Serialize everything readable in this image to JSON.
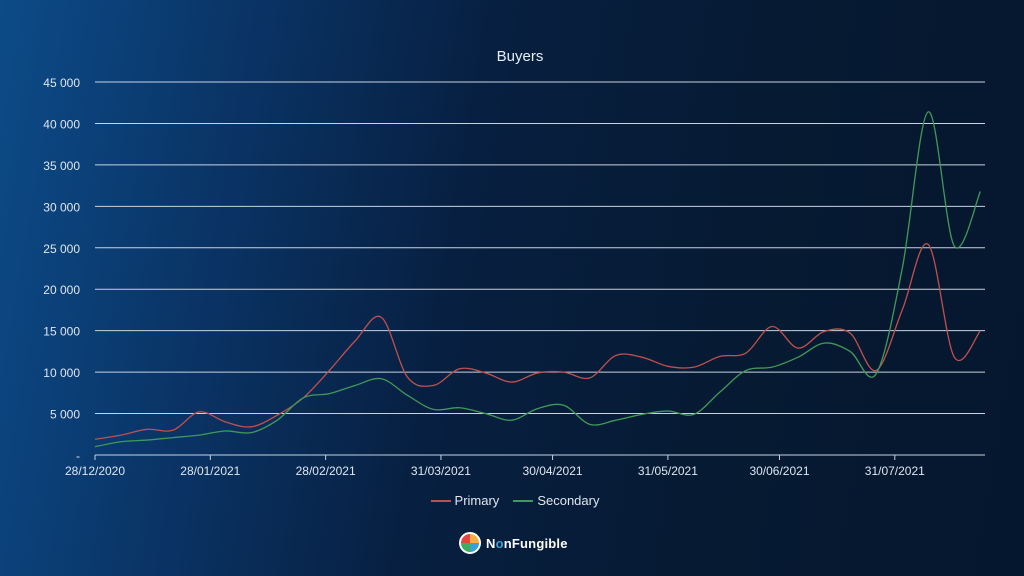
{
  "chart_data": {
    "type": "line",
    "title": "Buyers",
    "xlabel": "",
    "ylabel": "",
    "ylim": [
      0,
      45000
    ],
    "grid": true,
    "legend_position": "bottom",
    "y_ticks": [
      0,
      5000,
      10000,
      15000,
      20000,
      25000,
      30000,
      35000,
      40000,
      45000
    ],
    "y_tick_labels": [
      "-",
      "5 000",
      "10 000",
      "15 000",
      "20 000",
      "25 000",
      "30 000",
      "35 000",
      "40 000",
      "45 000"
    ],
    "x_ticks": [
      "2020-12-28",
      "2021-01-28",
      "2021-02-28",
      "2021-03-31",
      "2021-04-30",
      "2021-05-31",
      "2021-06-30",
      "2021-07-31"
    ],
    "x_tick_labels": [
      "28/12/2020",
      "28/01/2021",
      "28/02/2021",
      "31/03/2021",
      "30/04/2021",
      "31/05/2021",
      "30/06/2021",
      "31/07/2021"
    ],
    "x_start": "2020-12-28",
    "x_interval_days": 7,
    "series": [
      {
        "name": "Primary",
        "color": "#c0504d",
        "values": [
          1900,
          2400,
          3100,
          3000,
          5200,
          4000,
          3400,
          4800,
          6900,
          10200,
          13800,
          16600,
          9400,
          8400,
          10400,
          9900,
          8800,
          9900,
          10000,
          9300,
          12000,
          11800,
          10700,
          10600,
          11900,
          12300,
          15500,
          12900,
          14900,
          14700,
          10200,
          17500,
          25400,
          11800,
          15000
        ]
      },
      {
        "name": "Secondary",
        "color": "#3f9a58",
        "values": [
          1000,
          1600,
          1800,
          2100,
          2400,
          2900,
          2700,
          4200,
          6900,
          7400,
          8400,
          9200,
          7200,
          5500,
          5700,
          5000,
          4200,
          5600,
          6000,
          3700,
          4200,
          4900,
          5300,
          4900,
          7600,
          10200,
          10600,
          11800,
          13500,
          12500,
          9800,
          22500,
          41400,
          25200,
          31800
        ]
      }
    ]
  },
  "branding": {
    "logo_text_pre": "N",
    "logo_text_o": "o",
    "logo_text_post": "nFungible"
  }
}
